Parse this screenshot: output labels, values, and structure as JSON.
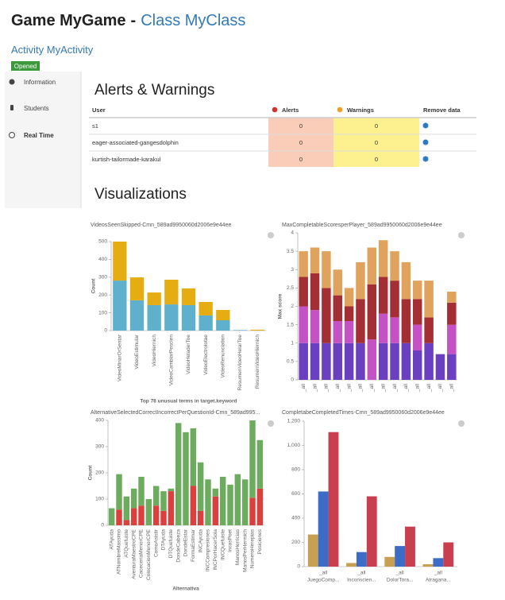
{
  "header": {
    "game": "Game MyGame",
    "separator": "-",
    "class": "Class MyClass"
  },
  "activity": "Activity MyActivity",
  "status": "Opened",
  "sidebar": [
    "Information",
    "Students",
    "Real Time"
  ],
  "alerts": {
    "title": "Alerts & Warnings",
    "columns": [
      "User",
      "Alerts",
      "Warnings",
      "Remove data"
    ],
    "rows": [
      {
        "user": "s1",
        "alerts": 0,
        "warnings": 0
      },
      {
        "user": "eager-associated-gangesdolphin",
        "alerts": 0,
        "warnings": 0
      },
      {
        "user": "kurtish-tailormade-karakul",
        "alerts": 0,
        "warnings": 0
      }
    ]
  },
  "visualizations_title": "Visualizations",
  "chart_data": [
    {
      "type": "bar",
      "stacked": true,
      "title": "VideosSeenSkipped-Cmn_589ad9950060d2006e9e44ee",
      "y_label": "Count",
      "x_label": "Top 78 unusual terms in target.keyword",
      "categories": [
        "VideoMinarOrSentar",
        "VideoEstimular",
        "VideoHiernich",
        "VideoCambiarPescien",
        "VideoHeladerToe",
        "VideoElectrolotae",
        "VideoRenunciation",
        "ResumenVideoHelarToe",
        "ResumenVideoHiernich"
      ],
      "series": [
        {
          "color": "#5fb0cc",
          "values": [
            281,
            170,
            143,
            147,
            143,
            85,
            58,
            3,
            0
          ]
        },
        {
          "color": "#e6ad12",
          "values": [
            219,
            129,
            71,
            139,
            94,
            76,
            58,
            0,
            5
          ]
        }
      ],
      "ylim": [
        0,
        500
      ],
      "yticks": [
        0,
        100,
        200,
        300,
        400,
        500
      ]
    },
    {
      "type": "bar",
      "stacked": true,
      "title": "MaxCompletableScoresperPlayer_589ad9950060d2006e9e44ee",
      "y_label": "Max score",
      "categories": [
        "_all",
        "_all",
        "_all",
        "_all",
        "_all",
        "_all",
        "_all",
        "_all",
        "_all",
        "_all",
        "_all",
        "_all",
        "_all",
        "_all"
      ],
      "series": [
        {
          "color": "#6a3fc0",
          "values": [
            1,
            1,
            1,
            1,
            1,
            1,
            0,
            1,
            1,
            1,
            0.8,
            1,
            0.7,
            0.7
          ]
        },
        {
          "color": "#c452c4",
          "values": [
            1,
            0.9,
            0,
            0.6,
            0.6,
            0,
            1.1,
            0.8,
            0.7,
            0,
            0.7,
            0,
            0,
            0.8
          ]
        },
        {
          "color": "#a32e34",
          "values": [
            0.8,
            1,
            1.5,
            0.7,
            0.4,
            1.2,
            1.5,
            1,
            1,
            1.2,
            0.7,
            0.7,
            0,
            0.6
          ]
        },
        {
          "color": "#e0a35e",
          "values": [
            0.7,
            0.7,
            1,
            0.7,
            0.5,
            1,
            1,
            1,
            0.8,
            1,
            0.5,
            1,
            0,
            0.3
          ]
        }
      ],
      "ylim": [
        0,
        4
      ],
      "yticks": [
        0,
        0.5,
        1,
        1.5,
        2,
        2.5,
        3,
        3.5,
        4
      ]
    },
    {
      "type": "bar",
      "stacked": true,
      "title": "AlternativeSelectedCorrectIncorrectPerQuestionId-Cmn_589ad995...",
      "y_label": "Count",
      "x_label": "Alternativa",
      "categories": [
        "ATAyuda",
        "ATNombreMassimo",
        "ATQuefuiste",
        "AventuraMaestroCPE",
        "CaceceriaMenorCPE",
        "ColocacionMenorCPE",
        "ComoAsistir",
        "DTAyuda",
        "DTQuefuiste",
        "DondeCabeza",
        "DondeEstar",
        "FormaEstimar",
        "INCAyuda",
        "INCCompresiones",
        "INCPorHacerSola",
        "INCQuefuiste",
        "IncasPoet",
        "ManosHerricias",
        "ManosPerHermich",
        "NumeroHerepias",
        "Posiciones"
      ],
      "series": [
        {
          "color": "#d9403e",
          "values": [
            0,
            60,
            20,
            65,
            75,
            0,
            75,
            55,
            130,
            0,
            0,
            150,
            55,
            0,
            110,
            0,
            0,
            0,
            0,
            105,
            140
          ]
        },
        {
          "color": "#6dab5e",
          "values": [
            65,
            135,
            90,
            75,
            110,
            100,
            75,
            75,
            10,
            390,
            355,
            220,
            185,
            175,
            30,
            185,
            155,
            195,
            175,
            295,
            185
          ]
        }
      ],
      "ylim": [
        0,
        400
      ],
      "yticks": [
        0,
        100,
        200,
        300,
        400
      ]
    },
    {
      "type": "bar",
      "stacked": false,
      "title": "CompletabeCompletedTimes-Cmn_589ad9950060d2006e9e44ee",
      "categories": [
        [
          "_all",
          "JuegoComp..."
        ],
        [
          "_all",
          "Inconscien..."
        ],
        [
          "_all",
          "DolorTora..."
        ],
        [
          "_all",
          "Atragana..."
        ]
      ],
      "series": [
        {
          "color": "#c8a052",
          "values": [
            265,
            30,
            80,
            20
          ]
        },
        {
          "color": "#3d6cc8",
          "values": [
            620,
            120,
            170,
            70
          ]
        },
        {
          "color": "#c84050",
          "values": [
            1110,
            580,
            330,
            200
          ]
        }
      ],
      "ylim": [
        0,
        1200
      ],
      "yticks": [
        0,
        200,
        400,
        600,
        800,
        {
          "value": 1000,
          "label": "1,000"
        },
        {
          "value": 1200,
          "label": "1,200"
        }
      ]
    }
  ]
}
